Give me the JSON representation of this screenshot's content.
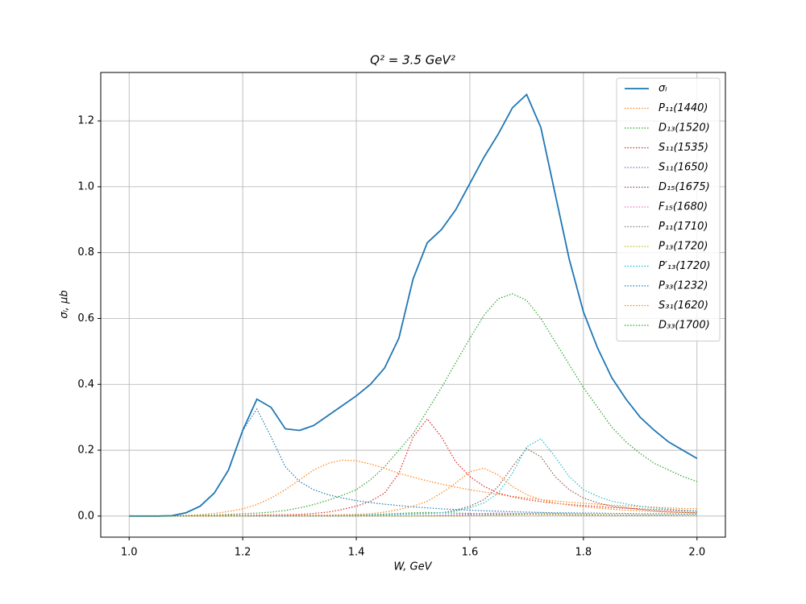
{
  "chart_data": {
    "type": "line",
    "title": "Q² = 3.5 GeV²",
    "x_label": "W, GeV",
    "y_label": "σₗ, μb",
    "xlim": [
      0.95,
      2.05
    ],
    "ylim": [
      -0.064,
      1.347
    ],
    "xticks": [
      {
        "value": 1,
        "label": "1.0"
      },
      1.2,
      1.4,
      1.6,
      1.8,
      {
        "value": 2,
        "label": "2.0"
      }
    ],
    "yticks": [
      {
        "value": 0,
        "label": "0.0"
      },
      0.2,
      0.4,
      0.6,
      0.8,
      {
        "value": 1,
        "label": "1.0"
      },
      1.2
    ],
    "grid": true,
    "legend": "upper right",
    "x": [
      1.0,
      1.025,
      1.05,
      1.075,
      1.1,
      1.125,
      1.15,
      1.175,
      1.2,
      1.225,
      1.25,
      1.275,
      1.3,
      1.325,
      1.35,
      1.375,
      1.4,
      1.425,
      1.45,
      1.475,
      1.5,
      1.525,
      1.55,
      1.575,
      1.6,
      1.625,
      1.65,
      1.675,
      1.7,
      1.725,
      1.75,
      1.775,
      1.8,
      1.825,
      1.85,
      1.875,
      1.9,
      1.925,
      1.95,
      1.975,
      2.0
    ],
    "series": [
      {
        "name": "σₗ",
        "color": "#1f77b4",
        "linestyle": "solid",
        "values": [
          0,
          0,
          0,
          0.001,
          0.01,
          0.03,
          0.07,
          0.14,
          0.26,
          0.355,
          0.33,
          0.265,
          0.26,
          0.275,
          0.305,
          0.335,
          0.365,
          0.4,
          0.45,
          0.54,
          0.72,
          0.83,
          0.87,
          0.93,
          1.01,
          1.09,
          1.16,
          1.24,
          1.28,
          1.18,
          0.98,
          0.78,
          0.62,
          0.51,
          0.42,
          0.355,
          0.3,
          0.26,
          0.225,
          0.2,
          0.175
        ]
      },
      {
        "name": "P₁₁(1440)",
        "color": "#ff7f0e",
        "linestyle": "dotted",
        "values": [
          0,
          0,
          0,
          0.001,
          0.002,
          0.004,
          0.008,
          0.014,
          0.022,
          0.035,
          0.055,
          0.08,
          0.11,
          0.14,
          0.16,
          0.17,
          0.168,
          0.158,
          0.145,
          0.13,
          0.118,
          0.107,
          0.097,
          0.088,
          0.08,
          0.073,
          0.066,
          0.06,
          0.055,
          0.05,
          0.046,
          0.042,
          0.039,
          0.036,
          0.033,
          0.031,
          0.029,
          0.027,
          0.025,
          0.023,
          0.022
        ]
      },
      {
        "name": "D₁₃(1520)",
        "color": "#2ca02c",
        "linestyle": "dotted",
        "values": [
          0,
          0,
          0,
          0,
          0,
          0,
          0,
          0,
          0,
          0,
          0,
          0,
          0.001,
          0.001,
          0.002,
          0.002,
          0.003,
          0.004,
          0.006,
          0.008,
          0.01,
          0.011,
          0.01,
          0.009,
          0.008,
          0.007,
          0.006,
          0.005,
          0.005,
          0.004,
          0.004,
          0.003,
          0.003,
          0.003,
          0.002,
          0.002,
          0.002,
          0.002,
          0.002,
          0.001,
          0.001
        ]
      },
      {
        "name": "S₁₁(1535)",
        "color": "#d62728",
        "linestyle": "dotted",
        "values": [
          0,
          0,
          0,
          0,
          0,
          0.001,
          0.001,
          0.002,
          0.002,
          0.003,
          0.004,
          0.004,
          0.005,
          0.008,
          0.012,
          0.02,
          0.03,
          0.045,
          0.07,
          0.13,
          0.24,
          0.295,
          0.24,
          0.165,
          0.12,
          0.09,
          0.07,
          0.058,
          0.05,
          0.044,
          0.039,
          0.035,
          0.032,
          0.029,
          0.026,
          0.024,
          0.022,
          0.02,
          0.018,
          0.016,
          0.015
        ]
      },
      {
        "name": "S₁₁(1650)",
        "color": "#9467bd",
        "linestyle": "dotted",
        "values": [
          0,
          0,
          0,
          0,
          0,
          0,
          0,
          0,
          0,
          0,
          0,
          0,
          0,
          0,
          0,
          0,
          0,
          0,
          0,
          0,
          0.001,
          0.002,
          0.003,
          0.004,
          0.006,
          0.008,
          0.009,
          0.008,
          0.007,
          0.006,
          0.005,
          0.004,
          0.003,
          0.003,
          0.002,
          0.002,
          0.002,
          0.002,
          0.001,
          0.001,
          0.001
        ]
      },
      {
        "name": "D₁₅(1675)",
        "color": "#8c564b",
        "linestyle": "dotted",
        "values": [
          0,
          0,
          0,
          0,
          0,
          0,
          0,
          0,
          0,
          0,
          0,
          0,
          0.001,
          0.001,
          0.001,
          0.002,
          0.002,
          0.003,
          0.004,
          0.005,
          0.006,
          0.008,
          0.01,
          0.018,
          0.03,
          0.05,
          0.09,
          0.15,
          0.205,
          0.18,
          0.12,
          0.08,
          0.055,
          0.04,
          0.03,
          0.025,
          0.02,
          0.016,
          0.013,
          0.011,
          0.01
        ]
      },
      {
        "name": "F₁₅(1680)",
        "color": "#e377c2",
        "linestyle": "dotted",
        "values": [
          0,
          0,
          0,
          0,
          0,
          0,
          0,
          0,
          0,
          0,
          0,
          0,
          0,
          0,
          0,
          0,
          0,
          0,
          0,
          0,
          0,
          0,
          0.001,
          0.002,
          0.003,
          0.004,
          0.005,
          0.006,
          0.006,
          0.005,
          0.004,
          0.004,
          0.003,
          0.003,
          0.002,
          0.002,
          0.002,
          0.002,
          0.001,
          0.001,
          0.001
        ]
      },
      {
        "name": "P₁₁(1710)",
        "color": "#7f7f7f",
        "linestyle": "dotted",
        "values": [
          0,
          0,
          0,
          0,
          0,
          0,
          0,
          0,
          0,
          0,
          0,
          0,
          0,
          0,
          0,
          0,
          0,
          0,
          0,
          0,
          0,
          0,
          0,
          0,
          0.001,
          0.002,
          0.004,
          0.006,
          0.008,
          0.009,
          0.008,
          0.007,
          0.006,
          0.005,
          0.004,
          0.004,
          0.003,
          0.003,
          0.003,
          0.002,
          0.002
        ]
      },
      {
        "name": "P₁₃(1720)",
        "color": "#bcbd22",
        "linestyle": "dotted",
        "values": [
          0,
          0,
          0,
          0,
          0,
          0,
          0,
          0,
          0,
          0,
          0,
          0,
          0,
          0,
          0,
          0,
          0,
          0,
          0,
          0,
          0,
          0,
          0,
          0,
          0.001,
          0.001,
          0.002,
          0.003,
          0.004,
          0.005,
          0.005,
          0.004,
          0.004,
          0.003,
          0.003,
          0.003,
          0.002,
          0.002,
          0.002,
          0.002,
          0.001
        ]
      },
      {
        "name": "P′₁₃(1720)",
        "color": "#17becf",
        "linestyle": "dotted",
        "values": [
          0,
          0,
          0,
          0,
          0,
          0,
          0,
          0,
          0,
          0,
          0,
          0,
          0.001,
          0.001,
          0.001,
          0.002,
          0.002,
          0.003,
          0.004,
          0.005,
          0.007,
          0.008,
          0.01,
          0.015,
          0.025,
          0.04,
          0.07,
          0.13,
          0.21,
          0.235,
          0.18,
          0.12,
          0.08,
          0.06,
          0.045,
          0.037,
          0.03,
          0.025,
          0.021,
          0.018,
          0.015
        ]
      },
      {
        "name": "P₃₃(1232)",
        "color": "#1f77b4",
        "linestyle": "dotted",
        "values": [
          0,
          0,
          0,
          0.001,
          0.01,
          0.03,
          0.07,
          0.14,
          0.26,
          0.325,
          0.24,
          0.15,
          0.105,
          0.08,
          0.065,
          0.055,
          0.047,
          0.041,
          0.036,
          0.032,
          0.028,
          0.025,
          0.022,
          0.02,
          0.018,
          0.016,
          0.015,
          0.013,
          0.012,
          0.011,
          0.01,
          0.01,
          0.009,
          0.009,
          0.008,
          0.008,
          0.007,
          0.007,
          0.007,
          0.006,
          0.006
        ]
      },
      {
        "name": "S₃₁(1620)",
        "color": "#ff7f0e",
        "linestyle": "dotted",
        "values": [
          0,
          0,
          0,
          0,
          0,
          0,
          0,
          0,
          0.001,
          0.001,
          0.001,
          0.002,
          0.002,
          0.003,
          0.003,
          0.004,
          0.005,
          0.007,
          0.012,
          0.02,
          0.03,
          0.045,
          0.07,
          0.1,
          0.135,
          0.145,
          0.125,
          0.09,
          0.065,
          0.05,
          0.04,
          0.033,
          0.028,
          0.024,
          0.021,
          0.018,
          0.016,
          0.014,
          0.012,
          0.011,
          0.01
        ]
      },
      {
        "name": "D₃₃(1700)",
        "color": "#2ca02c",
        "linestyle": "dotted",
        "values": [
          0,
          0,
          0,
          0,
          0.001,
          0.002,
          0.003,
          0.005,
          0.007,
          0.009,
          0.012,
          0.017,
          0.025,
          0.035,
          0.048,
          0.063,
          0.08,
          0.11,
          0.15,
          0.2,
          0.25,
          0.32,
          0.39,
          0.465,
          0.54,
          0.61,
          0.66,
          0.675,
          0.655,
          0.6,
          0.53,
          0.46,
          0.39,
          0.33,
          0.27,
          0.225,
          0.19,
          0.16,
          0.14,
          0.12,
          0.105
        ]
      }
    ]
  }
}
